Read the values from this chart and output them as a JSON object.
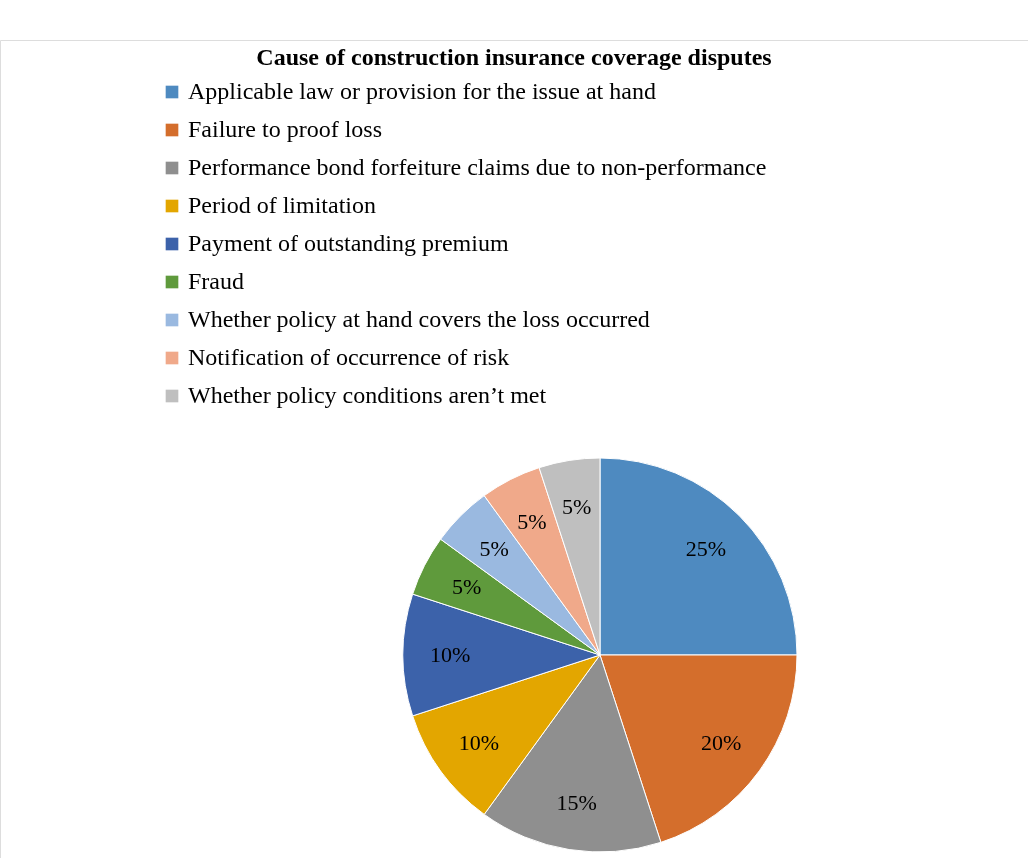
{
  "chart_data": {
    "type": "pie",
    "title": "Cause of construction insurance coverage disputes",
    "categories": [
      "Applicable law or provision for the issue at hand",
      "Failure to proof loss",
      "Performance bond forfeiture claims due to non-performance",
      "Period of limitation",
      "Payment of outstanding premium",
      "Fraud",
      "Whether policy at hand covers the loss occurred",
      "Notification of occurrence of risk",
      "Whether policy conditions aren’t met"
    ],
    "values": [
      25,
      20,
      15,
      10,
      10,
      5,
      5,
      5,
      5
    ],
    "value_labels": [
      "25%",
      "20%",
      "15%",
      "10%",
      "10%",
      "5%",
      "5%",
      "5%",
      "5%"
    ],
    "colors": [
      "#4e8ac0",
      "#d46e2c",
      "#8f8f8f",
      "#e3a600",
      "#3c62aa",
      "#5f9a3c",
      "#9ab9e0",
      "#f0a98a",
      "#bfbfbf"
    ],
    "legend": "top"
  }
}
